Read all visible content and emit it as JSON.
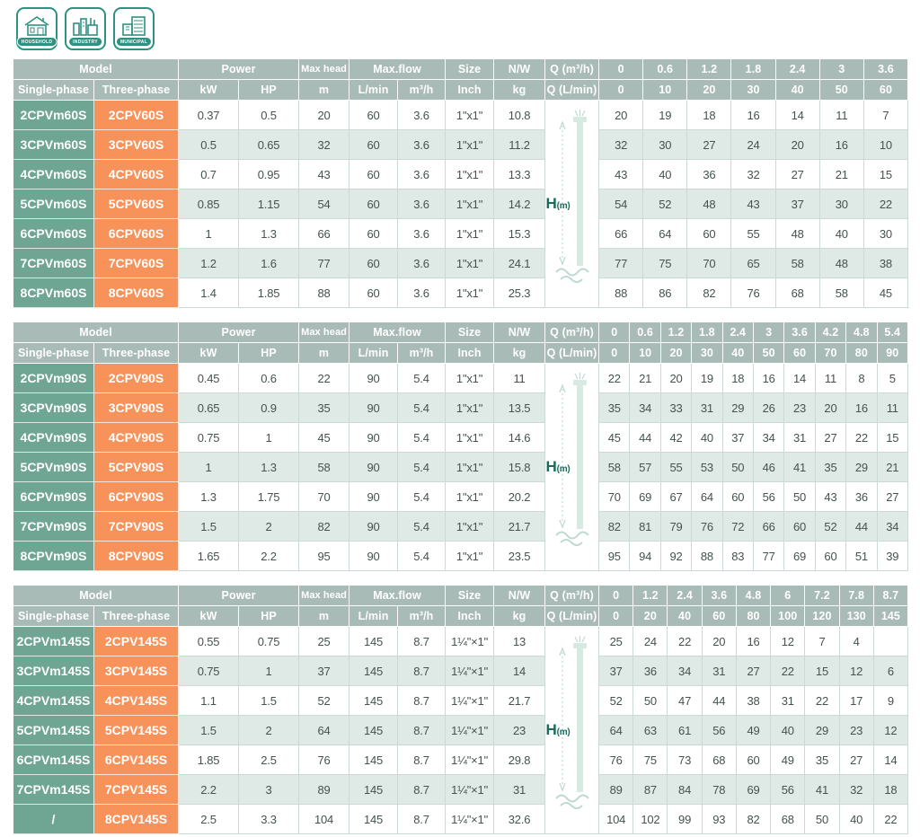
{
  "badges": [
    {
      "label": "HOUSEHOLD"
    },
    {
      "label": "INDUSTRY"
    },
    {
      "label": "MUNICIPAL"
    }
  ],
  "labels": {
    "model": "Model",
    "single_phase": "Single-phase",
    "three_phase": "Three-phase",
    "power": "Power",
    "kw": "kW",
    "hp": "HP",
    "max_head": "Max head",
    "max_head_unit": "m",
    "max_flow": "Max.flow",
    "flow_lmin": "L/min",
    "flow_m3h": "m³/h",
    "size": "Size",
    "size_unit": "Inch",
    "nw": "N/W",
    "nw_unit": "kg",
    "q_m3h": "Q (m³/h)",
    "q_lmin": "Q (L/min)",
    "h_big": "H",
    "h_unit": "(m)"
  },
  "colors": {
    "header_bg": "#a9bbb6",
    "single_phase_bg": "#6fa593",
    "three_phase_bg": "#f6925a",
    "row_alt_bg": "#dfe9e6",
    "cell_border": "#cdd9d5",
    "data_text": "#45524f",
    "badge_teal": "#2e9181",
    "h_label_color": "#1a6b5a"
  },
  "tables": [
    {
      "q_m3h": [
        "0",
        "0.6",
        "1.2",
        "1.8",
        "2.4",
        "3",
        "3.6"
      ],
      "q_lmin": [
        "0",
        "10",
        "20",
        "30",
        "40",
        "50",
        "60"
      ],
      "rows": [
        {
          "single": "2CPVm60S",
          "three": "2CPV60S",
          "specs": [
            "0.37",
            "0.5",
            "20",
            "60",
            "3.6",
            "1\"x1\"",
            "10.8"
          ],
          "h": [
            "20",
            "19",
            "18",
            "16",
            "14",
            "11",
            "7"
          ]
        },
        {
          "single": "3CPVm60S",
          "three": "3CPV60S",
          "specs": [
            "0.5",
            "0.65",
            "32",
            "60",
            "3.6",
            "1\"x1\"",
            "11.2"
          ],
          "h": [
            "32",
            "30",
            "27",
            "24",
            "20",
            "16",
            "10"
          ]
        },
        {
          "single": "4CPVm60S",
          "three": "4CPV60S",
          "specs": [
            "0.7",
            "0.95",
            "43",
            "60",
            "3.6",
            "1\"x1\"",
            "13.3"
          ],
          "h": [
            "43",
            "40",
            "36",
            "32",
            "27",
            "21",
            "15"
          ]
        },
        {
          "single": "5CPVm60S",
          "three": "5CPV60S",
          "specs": [
            "0.85",
            "1.15",
            "54",
            "60",
            "3.6",
            "1\"x1\"",
            "14.2"
          ],
          "h": [
            "54",
            "52",
            "48",
            "43",
            "37",
            "30",
            "22"
          ]
        },
        {
          "single": "6CPVm60S",
          "three": "6CPV60S",
          "specs": [
            "1",
            "1.3",
            "66",
            "60",
            "3.6",
            "1\"x1\"",
            "15.3"
          ],
          "h": [
            "66",
            "64",
            "60",
            "55",
            "48",
            "40",
            "30"
          ]
        },
        {
          "single": "7CPVm60S",
          "three": "7CPV60S",
          "specs": [
            "1.2",
            "1.6",
            "77",
            "60",
            "3.6",
            "1\"x1\"",
            "24.1"
          ],
          "h": [
            "77",
            "75",
            "70",
            "65",
            "58",
            "48",
            "38"
          ]
        },
        {
          "single": "8CPVm60S",
          "three": "8CPV60S",
          "specs": [
            "1.4",
            "1.85",
            "88",
            "60",
            "3.6",
            "1\"x1\"",
            "25.3"
          ],
          "h": [
            "88",
            "86",
            "82",
            "76",
            "68",
            "58",
            "45"
          ]
        }
      ]
    },
    {
      "q_m3h": [
        "0",
        "0.6",
        "1.2",
        "1.8",
        "2.4",
        "3",
        "3.6",
        "4.2",
        "4.8",
        "5.4"
      ],
      "q_lmin": [
        "0",
        "10",
        "20",
        "30",
        "40",
        "50",
        "60",
        "70",
        "80",
        "90"
      ],
      "rows": [
        {
          "single": "2CPVm90S",
          "three": "2CPV90S",
          "specs": [
            "0.45",
            "0.6",
            "22",
            "90",
            "5.4",
            "1\"x1\"",
            "11"
          ],
          "h": [
            "22",
            "21",
            "20",
            "19",
            "18",
            "16",
            "14",
            "11",
            "8",
            "5"
          ]
        },
        {
          "single": "3CPVm90S",
          "three": "3CPV90S",
          "specs": [
            "0.65",
            "0.9",
            "35",
            "90",
            "5.4",
            "1\"x1\"",
            "13.5"
          ],
          "h": [
            "35",
            "34",
            "33",
            "31",
            "29",
            "26",
            "23",
            "20",
            "16",
            "11"
          ]
        },
        {
          "single": "4CPVm90S",
          "three": "4CPV90S",
          "specs": [
            "0.75",
            "1",
            "45",
            "90",
            "5.4",
            "1\"x1\"",
            "14.6"
          ],
          "h": [
            "45",
            "44",
            "42",
            "40",
            "37",
            "34",
            "31",
            "27",
            "22",
            "15"
          ]
        },
        {
          "single": "5CPVm90S",
          "three": "5CPV90S",
          "specs": [
            "1",
            "1.3",
            "58",
            "90",
            "5.4",
            "1\"x1\"",
            "15.8"
          ],
          "h": [
            "58",
            "57",
            "55",
            "53",
            "50",
            "46",
            "41",
            "35",
            "29",
            "21"
          ]
        },
        {
          "single": "6CPVm90S",
          "three": "6CPV90S",
          "specs": [
            "1.3",
            "1.75",
            "70",
            "90",
            "5.4",
            "1\"x1\"",
            "20.2"
          ],
          "h": [
            "70",
            "69",
            "67",
            "64",
            "60",
            "56",
            "50",
            "43",
            "36",
            "27"
          ]
        },
        {
          "single": "7CPVm90S",
          "three": "7CPV90S",
          "specs": [
            "1.5",
            "2",
            "82",
            "90",
            "5.4",
            "1\"x1\"",
            "21.7"
          ],
          "h": [
            "82",
            "81",
            "79",
            "76",
            "72",
            "66",
            "60",
            "52",
            "44",
            "34"
          ]
        },
        {
          "single": "8CPVm90S",
          "three": "8CPV90S",
          "specs": [
            "1.65",
            "2.2",
            "95",
            "90",
            "5.4",
            "1\"x1\"",
            "23.5"
          ],
          "h": [
            "95",
            "94",
            "92",
            "88",
            "83",
            "77",
            "69",
            "60",
            "51",
            "39"
          ]
        }
      ]
    },
    {
      "q_m3h": [
        "0",
        "1.2",
        "2.4",
        "3.6",
        "4.8",
        "6",
        "7.2",
        "7.8",
        "8.7"
      ],
      "q_lmin": [
        "0",
        "20",
        "40",
        "60",
        "80",
        "100",
        "120",
        "130",
        "145"
      ],
      "rows": [
        {
          "single": "2CPVm145S",
          "three": "2CPV145S",
          "specs": [
            "0.55",
            "0.75",
            "25",
            "145",
            "8.7",
            "1¼\"×1\"",
            "13"
          ],
          "h": [
            "25",
            "24",
            "22",
            "20",
            "16",
            "12",
            "7",
            "4",
            ""
          ]
        },
        {
          "single": "3CPVm145S",
          "three": "3CPV145S",
          "specs": [
            "0.75",
            "1",
            "37",
            "145",
            "8.7",
            "1¼\"×1\"",
            "14"
          ],
          "h": [
            "37",
            "36",
            "34",
            "31",
            "27",
            "22",
            "15",
            "12",
            "6"
          ]
        },
        {
          "single": "4CPVm145S",
          "three": "4CPV145S",
          "specs": [
            "1.1",
            "1.5",
            "52",
            "145",
            "8.7",
            "1¼\"×1\"",
            "21.7"
          ],
          "h": [
            "52",
            "50",
            "47",
            "44",
            "38",
            "31",
            "22",
            "17",
            "9"
          ]
        },
        {
          "single": "5CPVm145S",
          "three": "5CPV145S",
          "specs": [
            "1.5",
            "2",
            "64",
            "145",
            "8.7",
            "1¼\"×1\"",
            "23"
          ],
          "h": [
            "64",
            "63",
            "61",
            "56",
            "49",
            "40",
            "29",
            "23",
            "12"
          ]
        },
        {
          "single": "6CPVm145S",
          "three": "6CPV145S",
          "specs": [
            "1.85",
            "2.5",
            "76",
            "145",
            "8.7",
            "1¼\"×1\"",
            "29.8"
          ],
          "h": [
            "76",
            "75",
            "73",
            "68",
            "60",
            "49",
            "35",
            "27",
            "14"
          ]
        },
        {
          "single": "7CPVm145S",
          "three": "7CPV145S",
          "specs": [
            "2.2",
            "3",
            "89",
            "145",
            "8.7",
            "1¼\"×1\"",
            "31"
          ],
          "h": [
            "89",
            "87",
            "84",
            "78",
            "69",
            "56",
            "41",
            "32",
            "18"
          ]
        },
        {
          "single": "/",
          "three": "8CPV145S",
          "specs": [
            "2.5",
            "3.3",
            "104",
            "145",
            "8.7",
            "1¼\"×1\"",
            "32.6"
          ],
          "h": [
            "104",
            "102",
            "99",
            "93",
            "82",
            "68",
            "50",
            "40",
            "22"
          ]
        }
      ]
    }
  ]
}
